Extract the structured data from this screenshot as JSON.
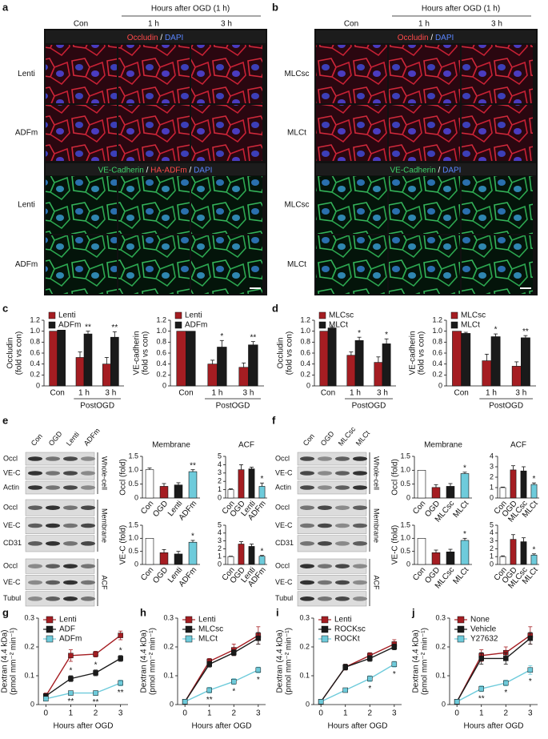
{
  "figure": {
    "letters": [
      "a",
      "b",
      "c",
      "d",
      "e",
      "f",
      "g",
      "h",
      "i",
      "j"
    ],
    "imaging": [
      {
        "header": "Hours after OGD (1 h)",
        "columns": [
          "Con",
          "1 h",
          "3 h"
        ],
        "banners": [
          [
            {
              "text": "Occludin",
              "color": "#ff4a4a"
            },
            {
              "text": " / ",
              "color": "#ffffff"
            },
            {
              "text": "DAPI",
              "color": "#5a86ff"
            }
          ],
          [
            {
              "text": "VE-Cadherin",
              "color": "#3fd36a"
            },
            {
              "text": " / ",
              "color": "#ffffff"
            },
            {
              "text": "HA-ADFm",
              "color": "#ff4a4a"
            },
            {
              "text": " / ",
              "color": "#ffffff"
            },
            {
              "text": "DAPI",
              "color": "#5a86ff"
            }
          ]
        ],
        "rows": [
          "Lenti",
          "ADFm",
          "Lenti",
          "ADFm"
        ]
      },
      {
        "header": "Hours after OGD (1 h)",
        "columns": [
          "Con",
          "1 h",
          "3 h"
        ],
        "banners": [
          [
            {
              "text": "Occludin",
              "color": "#ff4a4a"
            },
            {
              "text": " / ",
              "color": "#ffffff"
            },
            {
              "text": "DAPI",
              "color": "#5a86ff"
            }
          ],
          [
            {
              "text": "VE-Cadherin",
              "color": "#3fd36a"
            },
            {
              "text": " / ",
              "color": "#ffffff"
            },
            {
              "text": "DAPI",
              "color": "#5a86ff"
            }
          ]
        ],
        "rows": [
          "MLCsc",
          "MLCt",
          "MLCsc",
          "MLCt"
        ]
      }
    ],
    "blots": [
      {
        "lanes": [
          "Con",
          "OGD",
          "Lenti",
          "ADFm"
        ],
        "groups": [
          {
            "name": "Whole-cell",
            "rows": [
              "Occl",
              "VE-C",
              "Actin"
            ]
          },
          {
            "name": "Membrane",
            "rows": [
              "Occl",
              "VE-C",
              "CD31"
            ]
          },
          {
            "name": "ACF",
            "rows": [
              "Occl",
              "VE-C",
              "Tubul"
            ]
          }
        ]
      },
      {
        "lanes": [
          "Con",
          "OGD",
          "MLCsc",
          "MLCt"
        ],
        "groups": [
          {
            "name": "Whole-cell",
            "rows": [
              "Occl",
              "VE-C",
              "Actin"
            ]
          },
          {
            "name": "Membrane",
            "rows": [
              "Occl",
              "VE-C",
              "CD31"
            ]
          },
          {
            "name": "ACF",
            "rows": [
              "Occl",
              "VE-C",
              "Tubul"
            ]
          }
        ]
      }
    ]
  },
  "chart_data": [
    {
      "type": "bar",
      "ylabel": [
        "Occludin",
        "(fold vs con)"
      ],
      "xlabel": "PostOGD",
      "categories": [
        "Con",
        "1 h",
        "3 h"
      ],
      "series": [
        {
          "name": "Lenti",
          "color": "#a51d22",
          "values": [
            1.0,
            0.52,
            0.4
          ],
          "errors": [
            0,
            0.1,
            0.12
          ]
        },
        {
          "name": "ADFm",
          "color": "#1a1a1a",
          "values": [
            1.02,
            0.95,
            0.89
          ],
          "errors": [
            0,
            0.05,
            0.1
          ],
          "stars": [
            null,
            "**",
            "**"
          ]
        }
      ],
      "ylim": [
        0,
        1.2
      ],
      "yticks": [
        0,
        0.2,
        0.4,
        0.6,
        0.8,
        {
          "value": 1,
          "label": "1.0"
        },
        1.2
      ]
    },
    {
      "type": "bar",
      "ylabel": [
        "VE-cadherin",
        "(fold vs con)"
      ],
      "xlabel": "PostOGD",
      "categories": [
        "Con",
        "1 h",
        "3 h"
      ],
      "series": [
        {
          "name": "Lenti",
          "color": "#a51d22",
          "values": [
            1.0,
            0.4,
            0.34
          ],
          "errors": [
            0,
            0.07,
            0.08
          ]
        },
        {
          "name": "ADFm",
          "color": "#1a1a1a",
          "values": [
            1.0,
            0.71,
            0.75
          ],
          "errors": [
            0,
            0.12,
            0.06
          ],
          "stars": [
            null,
            "*",
            "**"
          ]
        }
      ],
      "ylim": [
        0,
        1.2
      ],
      "yticks": [
        0,
        0.2,
        0.4,
        0.6,
        0.8,
        {
          "value": 1,
          "label": "1.0"
        },
        1.2
      ]
    },
    {
      "type": "bar",
      "ylabel": [
        "Occludin",
        "(fold vs con)"
      ],
      "xlabel": "PostOGD",
      "categories": [
        "Con",
        "1 h",
        "3 h"
      ],
      "series": [
        {
          "name": "MLCsc",
          "color": "#a51d22",
          "values": [
            1.0,
            0.56,
            0.43
          ],
          "errors": [
            0,
            0.06,
            0.1
          ]
        },
        {
          "name": "MLCt",
          "color": "#1a1a1a",
          "values": [
            1.06,
            0.83,
            0.77
          ],
          "errors": [
            0.02,
            0.06,
            0.09
          ],
          "stars": [
            null,
            "*",
            "*"
          ]
        }
      ],
      "ylim": [
        0,
        1.2
      ],
      "yticks": [
        0,
        0.2,
        0.4,
        0.6,
        0.8,
        {
          "value": 1,
          "label": "1.0"
        },
        1.2
      ]
    },
    {
      "type": "bar",
      "ylabel": [
        "VE-cadherin",
        "(fold vs con)"
      ],
      "xlabel": "PostOGD",
      "categories": [
        "Con",
        "1 h",
        "3 h"
      ],
      "series": [
        {
          "name": "MLCsc",
          "color": "#a51d22",
          "values": [
            1.0,
            0.46,
            0.36
          ],
          "errors": [
            0,
            0.12,
            0.08
          ]
        },
        {
          "name": "MLCt",
          "color": "#1a1a1a",
          "values": [
            0.96,
            0.9,
            0.88
          ],
          "errors": [
            0.02,
            0.05,
            0.04
          ],
          "stars": [
            null,
            "*",
            "**"
          ]
        }
      ],
      "ylim": [
        0,
        1.2
      ],
      "yticks": [
        0,
        0.2,
        0.4,
        0.6,
        0.8,
        {
          "value": 1,
          "label": "1.0"
        },
        1.2
      ]
    },
    {
      "type": "bar",
      "title": "Membrane",
      "ylabel": "Occl (fold)",
      "categories": [
        "Con",
        "OGD",
        "Lenti",
        "ADFm"
      ],
      "colors": [
        "#ffffff",
        "#a51d22",
        "#1a1a1a",
        "#6ecbdb"
      ],
      "values": [
        1.02,
        0.42,
        0.47,
        0.95
      ],
      "errors": [
        0.06,
        0.1,
        0.08,
        0.07
      ],
      "stars": [
        null,
        null,
        null,
        "**"
      ],
      "ylim": [
        0,
        1.5
      ],
      "yticks": [
        0,
        0.5,
        {
          "value": 1,
          "label": "1.0"
        },
        1.5
      ]
    },
    {
      "type": "bar",
      "title": "ACF",
      "categories": [
        "Con",
        "OGD",
        "Lenti",
        "ADFm"
      ],
      "colors": [
        "#ffffff",
        "#a51d22",
        "#1a1a1a",
        "#6ecbdb"
      ],
      "values": [
        1.0,
        3.4,
        3.5,
        1.4
      ],
      "errors": [
        0.1,
        0.6,
        0.2,
        0.4
      ],
      "stars": [
        null,
        null,
        null,
        "*"
      ],
      "ylim": [
        0,
        5
      ],
      "yticks": [
        0,
        1,
        2,
        3,
        4,
        5
      ]
    },
    {
      "type": "bar",
      "ylabel": "VE-C (fold)",
      "categories": [
        "Con",
        "OGD",
        "Lenti",
        "ADFm"
      ],
      "colors": [
        "#ffffff",
        "#a51d22",
        "#1a1a1a",
        "#6ecbdb"
      ],
      "values": [
        1.0,
        0.45,
        0.4,
        0.85
      ],
      "errors": [
        0,
        0.12,
        0.1,
        0.07
      ],
      "stars": [
        null,
        null,
        null,
        "*"
      ],
      "ylim": [
        0,
        1.5
      ],
      "yticks": [
        0,
        0.5,
        {
          "value": 1,
          "label": "1.0"
        },
        1.5
      ]
    },
    {
      "type": "bar",
      "categories": [
        "Con",
        "OGD",
        "Lenti",
        "ADFm"
      ],
      "colors": [
        "#ffffff",
        "#a51d22",
        "#1a1a1a",
        "#6ecbdb"
      ],
      "values": [
        1.0,
        2.6,
        2.3,
        1.05
      ],
      "errors": [
        0.05,
        0.3,
        0.3,
        0.1
      ],
      "stars": [
        null,
        null,
        null,
        "*"
      ],
      "ylim": [
        0,
        5
      ],
      "yticks": [
        0,
        1,
        2,
        3,
        4,
        5
      ]
    },
    {
      "type": "bar",
      "title": "Membrane",
      "ylabel": "Occl (fold)",
      "categories": [
        "Con",
        "OGD",
        "MLCsc",
        "MLCt"
      ],
      "colors": [
        "#ffffff",
        "#a51d22",
        "#1a1a1a",
        "#6ecbdb"
      ],
      "values": [
        1.0,
        0.38,
        0.42,
        0.88
      ],
      "errors": [
        0,
        0.1,
        0.1,
        0.05
      ],
      "stars": [
        null,
        null,
        null,
        "*"
      ],
      "ylim": [
        0,
        1.5
      ],
      "yticks": [
        0,
        0.5,
        {
          "value": 1,
          "label": "1.0"
        },
        1.5
      ]
    },
    {
      "type": "bar",
      "title": "ACF",
      "categories": [
        "Con",
        "OGD",
        "MLCsc",
        "MLCt"
      ],
      "colors": [
        "#ffffff",
        "#a51d22",
        "#1a1a1a",
        "#6ecbdb"
      ],
      "values": [
        1.0,
        2.7,
        2.6,
        1.3
      ],
      "errors": [
        0.05,
        0.4,
        0.4,
        0.15
      ],
      "stars": [
        null,
        null,
        null,
        "*"
      ],
      "ylim": [
        0,
        4
      ],
      "yticks": [
        0,
        1,
        2,
        3,
        4
      ]
    },
    {
      "type": "bar",
      "ylabel": "VE-C (fold)",
      "categories": [
        "Con",
        "OGD",
        "MLCsc",
        "MLCt"
      ],
      "colors": [
        "#ffffff",
        "#a51d22",
        "#1a1a1a",
        "#6ecbdb"
      ],
      "values": [
        1.0,
        0.45,
        0.48,
        0.92
      ],
      "errors": [
        0,
        0.1,
        0.1,
        0.08
      ],
      "stars": [
        null,
        null,
        null,
        "*"
      ],
      "ylim": [
        0,
        1.5
      ],
      "yticks": [
        0,
        0.5,
        {
          "value": 1,
          "label": "1.0"
        },
        1.5
      ]
    },
    {
      "type": "bar",
      "categories": [
        "Con",
        "OGD",
        "MLCsc",
        "MLCt"
      ],
      "colors": [
        "#ffffff",
        "#a51d22",
        "#1a1a1a",
        "#6ecbdb"
      ],
      "values": [
        1.0,
        3.2,
        2.9,
        1.2
      ],
      "errors": [
        0.1,
        0.6,
        0.5,
        0.15
      ],
      "stars": [
        null,
        null,
        null,
        "*"
      ],
      "ylim": [
        0,
        5
      ],
      "yticks": [
        0,
        1,
        2,
        3,
        4,
        5
      ]
    },
    {
      "type": "line",
      "ylabel": [
        "Dextran (4.4 kDa)",
        "(pmol mm⁻² min⁻¹)"
      ],
      "xlabel": "Hours after OGD",
      "x": [
        0,
        1,
        2,
        3
      ],
      "xlim": [
        -0.3,
        3.3
      ],
      "xticks": [
        0,
        1,
        2,
        3
      ],
      "ylim": [
        0,
        0.3
      ],
      "yticks": [
        0,
        0.1,
        0.2,
        0.3
      ],
      "series": [
        {
          "name": "Lenti",
          "color": "#a51d22",
          "values": [
            0.03,
            0.17,
            0.175,
            0.24
          ],
          "errors": [
            0.01,
            0.02,
            0.01,
            0.015
          ]
        },
        {
          "name": "ADF",
          "color": "#1a1a1a",
          "values": [
            0.03,
            0.09,
            0.11,
            0.16
          ],
          "errors": [
            0.005,
            0.01,
            0.01,
            0.01
          ],
          "stars": [
            null,
            "*",
            "*",
            "*"
          ]
        },
        {
          "name": "ADFm",
          "color": "#6ecbdb",
          "values": [
            0.02,
            0.04,
            0.04,
            0.075
          ],
          "errors": [
            0.005,
            0.005,
            0.008,
            0.01
          ],
          "stars": [
            null,
            "**",
            "**",
            "**"
          ]
        }
      ]
    },
    {
      "type": "line",
      "ylabel": [
        "Dextran (4.4 kDa)",
        "(pmol mm⁻² min⁻¹)"
      ],
      "xlabel": "Hours after OGD",
      "x": [
        0,
        1,
        2,
        3
      ],
      "xlim": [
        -0.3,
        3.3
      ],
      "xticks": [
        0,
        1,
        2,
        3
      ],
      "ylim": [
        0,
        0.3
      ],
      "yticks": [
        0,
        0.1,
        0.2,
        0.3
      ],
      "series": [
        {
          "name": "Lenti",
          "color": "#a51d22",
          "values": [
            0.01,
            0.15,
            0.19,
            0.24
          ],
          "errors": [
            0.005,
            0.01,
            0.02,
            0.03
          ]
        },
        {
          "name": "MLCsc",
          "color": "#1a1a1a",
          "values": [
            0.01,
            0.14,
            0.18,
            0.23
          ],
          "errors": [
            0.005,
            0.01,
            0.01,
            0.02
          ]
        },
        {
          "name": "MLCt",
          "color": "#6ecbdb",
          "values": [
            0.01,
            0.05,
            0.08,
            0.12
          ],
          "errors": [
            0.005,
            0.01,
            0.01,
            0.01
          ],
          "stars": [
            null,
            "**",
            "*",
            "*"
          ]
        }
      ]
    },
    {
      "type": "line",
      "ylabel": [
        "Dextran (4.4 kDa)",
        "(pmol mm⁻² min⁻¹)"
      ],
      "xlabel": "Hours after OGD",
      "x": [
        0,
        1,
        2,
        3
      ],
      "xlim": [
        -0.3,
        3.3
      ],
      "xticks": [
        0,
        1,
        2,
        3
      ],
      "ylim": [
        0,
        0.3
      ],
      "yticks": [
        0,
        0.1,
        0.2,
        0.3
      ],
      "series": [
        {
          "name": "Lenti",
          "color": "#a51d22",
          "values": [
            0.01,
            0.13,
            0.17,
            0.21
          ],
          "errors": [
            0.005,
            0.01,
            0.01,
            0.015
          ]
        },
        {
          "name": "ROCKsc",
          "color": "#1a1a1a",
          "values": [
            0.01,
            0.13,
            0.16,
            0.2
          ],
          "errors": [
            0.005,
            0.01,
            0.01,
            0.01
          ]
        },
        {
          "name": "ROCKt",
          "color": "#6ecbdb",
          "values": [
            0.01,
            0.05,
            0.09,
            0.14
          ],
          "errors": [
            0.005,
            0.005,
            0.01,
            0.01
          ],
          "stars": [
            null,
            null,
            "*",
            "*"
          ]
        }
      ]
    },
    {
      "type": "line",
      "ylabel": [
        "Dextran (4.4 kDa)",
        "(pmol mm⁻² min⁻¹)"
      ],
      "xlabel": "Hours after OGD",
      "x": [
        0,
        1,
        2,
        3
      ],
      "xlim": [
        -0.3,
        3.3
      ],
      "xticks": [
        0,
        1,
        2,
        3
      ],
      "ylim": [
        0,
        0.3
      ],
      "yticks": [
        0,
        0.1,
        0.2,
        0.3
      ],
      "series": [
        {
          "name": "None",
          "color": "#a51d22",
          "values": [
            0.01,
            0.17,
            0.18,
            0.24
          ],
          "errors": [
            0.005,
            0.02,
            0.02,
            0.03
          ]
        },
        {
          "name": "Vehicle",
          "color": "#1a1a1a",
          "values": [
            0.01,
            0.16,
            0.16,
            0.23
          ],
          "errors": [
            0.005,
            0.02,
            0.02,
            0.02
          ]
        },
        {
          "name": "Y27632",
          "color": "#6ecbdb",
          "values": [
            0.01,
            0.055,
            0.075,
            0.12
          ],
          "errors": [
            0.005,
            0.01,
            0.01,
            0.015
          ],
          "stars": [
            null,
            "**",
            "*",
            "*"
          ]
        }
      ]
    }
  ]
}
